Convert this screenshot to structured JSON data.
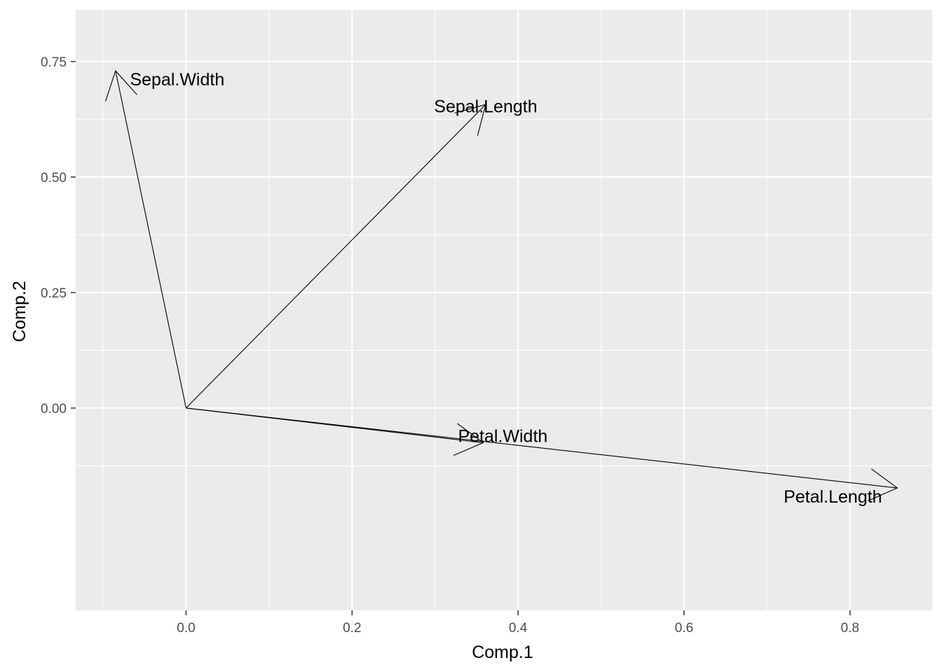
{
  "chart_data": {
    "type": "biplot-arrows",
    "title": "",
    "xlabel": "Comp.1",
    "ylabel": "Comp.2",
    "xlim": [
      -0.133,
      0.899
    ],
    "ylim": [
      -0.438,
      0.862
    ],
    "xticks": [
      0.0,
      0.2,
      0.4,
      0.6,
      0.8
    ],
    "xtick_labels": [
      "0.0",
      "0.2",
      "0.4",
      "0.6",
      "0.8"
    ],
    "yticks": [
      0.0,
      0.25,
      0.5,
      0.75
    ],
    "ytick_labels": [
      "0.00",
      "0.25",
      "0.50",
      "0.75"
    ],
    "grid": true,
    "panel_background": "#ebebeb",
    "grid_color": "#ffffff",
    "arrow_color": "#000000",
    "origin": [
      0,
      0
    ],
    "vectors": [
      {
        "name": "Sepal.Length",
        "x": 0.361,
        "y": 0.657
      },
      {
        "name": "Sepal.Width",
        "x": -0.085,
        "y": 0.73
      },
      {
        "name": "Petal.Length",
        "x": 0.857,
        "y": -0.173
      },
      {
        "name": "Petal.Width",
        "x": 0.358,
        "y": -0.075
      }
    ]
  }
}
